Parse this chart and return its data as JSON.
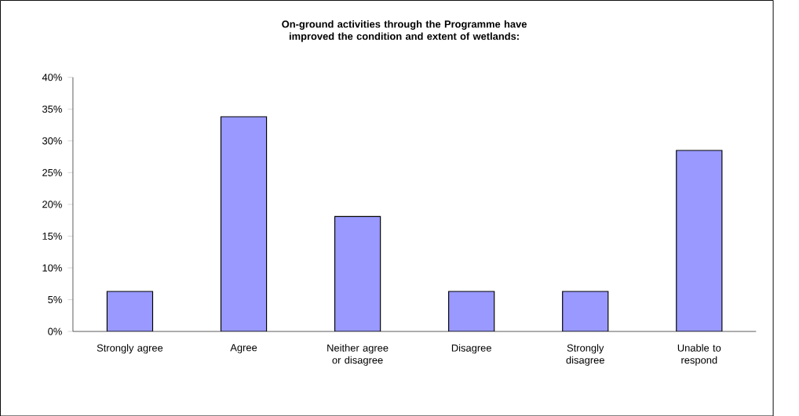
{
  "chart_data": {
    "type": "bar",
    "title": "On-ground activities through the Programme have improved the condition and extent of wetlands:",
    "categories": [
      "Strongly agree",
      "Agree",
      "Neither agree or disagree",
      "Disagree",
      "Strongly disagree",
      "Unable to respond"
    ],
    "values": [
      6.3,
      33.8,
      18.1,
      6.3,
      6.3,
      28.5
    ],
    "color": "#9999ff",
    "ylim": [
      0,
      40
    ],
    "yticks": [
      {
        "value": 0,
        "label": "0%"
      },
      {
        "value": 5,
        "label": "5%"
      },
      {
        "value": 10,
        "label": "10%"
      },
      {
        "value": 15,
        "label": "15%"
      },
      {
        "value": 20,
        "label": "20%"
      },
      {
        "value": 25,
        "label": "25%"
      },
      {
        "value": 30,
        "label": "30%"
      },
      {
        "value": 35,
        "label": "35%"
      },
      {
        "value": 40,
        "label": "40%"
      }
    ],
    "grid": false
  }
}
